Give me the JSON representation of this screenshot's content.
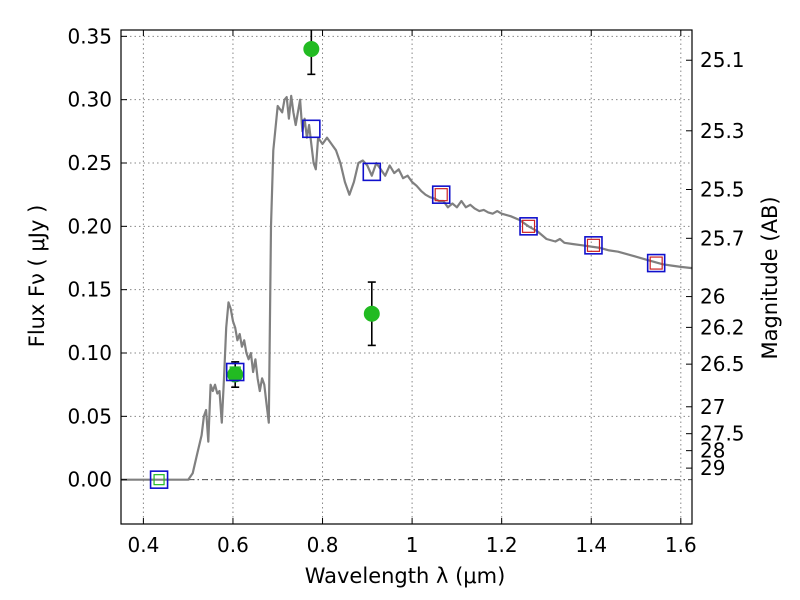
{
  "chart_data": {
    "type": "line",
    "xlabel": "Wavelength  λ (μm)",
    "ylabel": "Flux  Fν  ( μJy )",
    "ylabel_right": "Magnitude (AB)",
    "xlim": [
      0.35,
      1.625
    ],
    "ylim": [
      -0.035,
      0.355
    ],
    "grid": true,
    "x_ticks": [
      0.4,
      0.6,
      0.8,
      1.0,
      1.2,
      1.4,
      1.6
    ],
    "x_tick_labels": [
      "0.4",
      "0.6",
      "0.8",
      "1",
      "1.2",
      "1.4",
      "1.6"
    ],
    "y_ticks": [
      0.0,
      0.05,
      0.1,
      0.15,
      0.2,
      0.25,
      0.3,
      0.35
    ],
    "y_tick_labels": [
      "0.00",
      "0.05",
      "0.10",
      "0.15",
      "0.20",
      "0.25",
      "0.30",
      "0.35"
    ],
    "right_ticks": [
      {
        "mag": 25.1,
        "label": "25.1"
      },
      {
        "mag": 25.3,
        "label": "25.3"
      },
      {
        "mag": 25.5,
        "label": "25.5"
      },
      {
        "mag": 25.7,
        "label": "25.7"
      },
      {
        "mag": 26.0,
        "label": "26"
      },
      {
        "mag": 26.2,
        "label": "26.2"
      },
      {
        "mag": 26.5,
        "label": "26.5"
      },
      {
        "mag": 27.0,
        "label": "27"
      },
      {
        "mag": 27.5,
        "label": "27.5"
      },
      {
        "mag": 28.0,
        "label": "28"
      },
      {
        "mag": 29.0,
        "label": "29"
      }
    ],
    "colors": {
      "sed_line": "#808080",
      "observed": "#22bb22",
      "model_box": "#1010cc",
      "model_inner": "#cc2222",
      "zero_line": "#555555",
      "grid": "#888888"
    },
    "series": [
      {
        "kind": "sed-model-line",
        "points": [
          [
            0.35,
            0.0
          ],
          [
            0.5,
            0.0
          ],
          [
            0.51,
            0.005
          ],
          [
            0.52,
            0.02
          ],
          [
            0.53,
            0.035
          ],
          [
            0.535,
            0.05
          ],
          [
            0.54,
            0.055
          ],
          [
            0.545,
            0.03
          ],
          [
            0.55,
            0.075
          ],
          [
            0.555,
            0.07
          ],
          [
            0.56,
            0.075
          ],
          [
            0.565,
            0.068
          ],
          [
            0.57,
            0.07
          ],
          [
            0.575,
            0.045
          ],
          [
            0.58,
            0.08
          ],
          [
            0.585,
            0.12
          ],
          [
            0.59,
            0.14
          ],
          [
            0.595,
            0.135
          ],
          [
            0.6,
            0.125
          ],
          [
            0.605,
            0.12
          ],
          [
            0.61,
            0.11
          ],
          [
            0.615,
            0.115
          ],
          [
            0.62,
            0.105
          ],
          [
            0.625,
            0.11
          ],
          [
            0.63,
            0.1
          ],
          [
            0.635,
            0.095
          ],
          [
            0.64,
            0.1
          ],
          [
            0.645,
            0.085
          ],
          [
            0.65,
            0.095
          ],
          [
            0.655,
            0.08
          ],
          [
            0.66,
            0.07
          ],
          [
            0.665,
            0.08
          ],
          [
            0.67,
            0.075
          ],
          [
            0.675,
            0.06
          ],
          [
            0.68,
            0.045
          ],
          [
            0.685,
            0.2
          ],
          [
            0.69,
            0.26
          ],
          [
            0.7,
            0.295
          ],
          [
            0.71,
            0.29
          ],
          [
            0.715,
            0.3
          ],
          [
            0.72,
            0.302
          ],
          [
            0.725,
            0.285
          ],
          [
            0.73,
            0.303
          ],
          [
            0.735,
            0.29
          ],
          [
            0.74,
            0.28
          ],
          [
            0.745,
            0.29
          ],
          [
            0.75,
            0.3
          ],
          [
            0.755,
            0.275
          ],
          [
            0.76,
            0.285
          ],
          [
            0.765,
            0.27
          ],
          [
            0.77,
            0.28
          ],
          [
            0.775,
            0.265
          ],
          [
            0.78,
            0.25
          ],
          [
            0.785,
            0.245
          ],
          [
            0.79,
            0.27
          ],
          [
            0.8,
            0.265
          ],
          [
            0.81,
            0.27
          ],
          [
            0.82,
            0.265
          ],
          [
            0.83,
            0.26
          ],
          [
            0.84,
            0.25
          ],
          [
            0.85,
            0.235
          ],
          [
            0.86,
            0.225
          ],
          [
            0.87,
            0.235
          ],
          [
            0.88,
            0.25
          ],
          [
            0.89,
            0.252
          ],
          [
            0.9,
            0.248
          ],
          [
            0.91,
            0.24
          ],
          [
            0.92,
            0.25
          ],
          [
            0.93,
            0.245
          ],
          [
            0.94,
            0.24
          ],
          [
            0.95,
            0.248
          ],
          [
            0.96,
            0.242
          ],
          [
            0.97,
            0.245
          ],
          [
            0.98,
            0.238
          ],
          [
            0.99,
            0.24
          ],
          [
            1.0,
            0.235
          ],
          [
            1.01,
            0.232
          ],
          [
            1.02,
            0.228
          ],
          [
            1.03,
            0.225
          ],
          [
            1.04,
            0.223
          ],
          [
            1.05,
            0.222
          ],
          [
            1.06,
            0.22
          ],
          [
            1.07,
            0.22
          ],
          [
            1.08,
            0.215
          ],
          [
            1.09,
            0.218
          ],
          [
            1.1,
            0.215
          ],
          [
            1.11,
            0.22
          ],
          [
            1.12,
            0.215
          ],
          [
            1.13,
            0.217
          ],
          [
            1.14,
            0.214
          ],
          [
            1.15,
            0.212
          ],
          [
            1.16,
            0.213
          ],
          [
            1.17,
            0.211
          ],
          [
            1.18,
            0.21
          ],
          [
            1.19,
            0.212
          ],
          [
            1.2,
            0.21
          ],
          [
            1.22,
            0.208
          ],
          [
            1.24,
            0.205
          ],
          [
            1.26,
            0.2
          ],
          [
            1.28,
            0.196
          ],
          [
            1.3,
            0.19
          ],
          [
            1.32,
            0.188
          ],
          [
            1.33,
            0.19
          ],
          [
            1.34,
            0.187
          ],
          [
            1.36,
            0.186
          ],
          [
            1.38,
            0.185
          ],
          [
            1.4,
            0.184
          ],
          [
            1.42,
            0.183
          ],
          [
            1.44,
            0.181
          ],
          [
            1.46,
            0.18
          ],
          [
            1.48,
            0.178
          ],
          [
            1.5,
            0.176
          ],
          [
            1.52,
            0.174
          ],
          [
            1.54,
            0.172
          ],
          [
            1.56,
            0.17
          ],
          [
            1.58,
            0.169
          ],
          [
            1.6,
            0.168
          ],
          [
            1.625,
            0.167
          ]
        ]
      },
      {
        "kind": "model-photometry",
        "points": [
          {
            "x": 0.435,
            "y": 0.0,
            "inner": "green"
          },
          {
            "x": 0.605,
            "y": 0.085,
            "inner": "green"
          },
          {
            "x": 0.775,
            "y": 0.277,
            "inner": "none"
          },
          {
            "x": 0.91,
            "y": 0.243,
            "inner": "none"
          },
          {
            "x": 1.065,
            "y": 0.225,
            "inner": "red"
          },
          {
            "x": 1.26,
            "y": 0.2,
            "inner": "red"
          },
          {
            "x": 1.405,
            "y": 0.185,
            "inner": "red"
          },
          {
            "x": 1.545,
            "y": 0.171,
            "inner": "red"
          }
        ]
      },
      {
        "kind": "observed-photometry",
        "points": [
          {
            "x": 0.605,
            "y": 0.083,
            "err": 0.01
          },
          {
            "x": 0.775,
            "y": 0.34,
            "err": 0.02
          },
          {
            "x": 0.91,
            "y": 0.131,
            "err": 0.025
          }
        ]
      }
    ]
  }
}
